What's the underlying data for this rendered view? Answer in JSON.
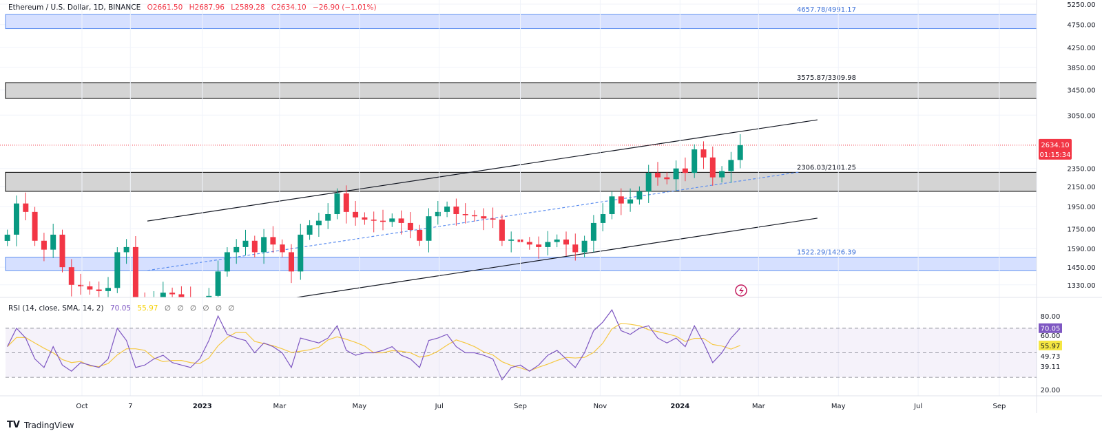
{
  "header": {
    "symbol": "Ethereum / U.S. Dollar, 1D, BINANCE",
    "open": "O2661.50",
    "high": "H2687.96",
    "low": "L2589.28",
    "close": "C2634.10",
    "change": "−26.90 (−1.01%)"
  },
  "rsi_header": {
    "label": "RSI (14, close, SMA, 14, 2)",
    "rsi": "70.05",
    "sma": "55.97",
    "empty": [
      "∅",
      "∅",
      "∅",
      "∅",
      "∅",
      "∅"
    ]
  },
  "footer": {
    "brand": "TradingView",
    "logo_mark": "17"
  },
  "colors": {
    "up": "#089981",
    "down": "#f23645",
    "rsi": "#7e57c2",
    "rsi_sma": "#f5c842",
    "blue_zone": "#d6e0ff",
    "gray_zone": "#d4d4d4",
    "accent_blue": "#5b8def"
  },
  "chart_data": [
    {
      "type": "candlestick",
      "scale": "log",
      "ylim": [
        1270,
        5300
      ],
      "price_ticks": [
        "5250.00",
        "4750.00",
        "4250.00",
        "3850.00",
        "3450.00",
        "3050.00",
        "2350.00",
        "2150.00",
        "1950.00",
        "1750.00",
        "1590.00",
        "1450.00",
        "1330.00"
      ],
      "time_ticks": [
        {
          "label": "Oct",
          "date": "2022-10-01"
        },
        {
          "label": "7",
          "date": "2022-11-07"
        },
        {
          "label": "2023",
          "date": "2023-01-01"
        },
        {
          "label": "Mar",
          "date": "2023-03-01"
        },
        {
          "label": "May",
          "date": "2023-05-01"
        },
        {
          "label": "Jul",
          "date": "2023-07-01"
        },
        {
          "label": "Sep",
          "date": "2023-09-01"
        },
        {
          "label": "Nov",
          "date": "2023-11-01"
        },
        {
          "label": "2024",
          "date": "2024-01-01"
        },
        {
          "label": "Mar",
          "date": "2024-03-01"
        },
        {
          "label": "May",
          "date": "2024-05-01"
        },
        {
          "label": "Jul",
          "date": "2024-07-01"
        },
        {
          "label": "Sep",
          "date": "2024-09-01"
        }
      ],
      "last_price": {
        "value": 2634.1,
        "label": "2634.10",
        "countdown": "01:15:34"
      },
      "dates": [
        "2022-08-05",
        "2022-08-12",
        "2022-08-19",
        "2022-08-26",
        "2022-09-02",
        "2022-09-09",
        "2022-09-16",
        "2022-09-23",
        "2022-09-30",
        "2022-10-07",
        "2022-10-14",
        "2022-10-21",
        "2022-10-28",
        "2022-11-04",
        "2022-11-11",
        "2022-11-18",
        "2022-11-25",
        "2022-12-02",
        "2022-12-09",
        "2022-12-16",
        "2022-12-23",
        "2022-12-30",
        "2023-01-06",
        "2023-01-13",
        "2023-01-20",
        "2023-01-27",
        "2023-02-03",
        "2023-02-10",
        "2023-02-17",
        "2023-02-24",
        "2023-03-03",
        "2023-03-10",
        "2023-03-17",
        "2023-03-24",
        "2023-03-31",
        "2023-04-07",
        "2023-04-14",
        "2023-04-21",
        "2023-04-28",
        "2023-05-05",
        "2023-05-12",
        "2023-05-19",
        "2023-05-26",
        "2023-06-02",
        "2023-06-09",
        "2023-06-16",
        "2023-06-23",
        "2023-06-30",
        "2023-07-07",
        "2023-07-14",
        "2023-07-21",
        "2023-07-28",
        "2023-08-04",
        "2023-08-11",
        "2023-08-18",
        "2023-08-25",
        "2023-09-01",
        "2023-09-08",
        "2023-09-15",
        "2023-09-22",
        "2023-09-29",
        "2023-10-06",
        "2023-10-13",
        "2023-10-20",
        "2023-10-27",
        "2023-11-03",
        "2023-11-10",
        "2023-11-17",
        "2023-11-24",
        "2023-12-01",
        "2023-12-08",
        "2023-12-15",
        "2023-12-22",
        "2023-12-29",
        "2024-01-05",
        "2024-01-12",
        "2024-01-19",
        "2024-01-26",
        "2024-02-02",
        "2024-02-09",
        "2024-02-16"
      ],
      "close": [
        1700,
        1980,
        1900,
        1650,
        1580,
        1700,
        1450,
        1330,
        1320,
        1300,
        1290,
        1310,
        1560,
        1600,
        1250,
        1220,
        1240,
        1280,
        1270,
        1250,
        1220,
        1200,
        1260,
        1420,
        1560,
        1600,
        1650,
        1560,
        1680,
        1620,
        1560,
        1420,
        1700,
        1780,
        1820,
        1880,
        2080,
        1900,
        1850,
        1830,
        1820,
        1810,
        1840,
        1800,
        1740,
        1650,
        1860,
        1900,
        1950,
        1880,
        1870,
        1860,
        1840,
        1830,
        1650,
        1660,
        1640,
        1620,
        1600,
        1640,
        1660,
        1620,
        1560,
        1650,
        1800,
        1880,
        2050,
        1980,
        2020,
        2100,
        2300,
        2250,
        2230,
        2350,
        2300,
        2580,
        2480,
        2250,
        2320,
        2450,
        2634.1
      ],
      "zones": [
        {
          "low": 4657.78,
          "high": 4991.17,
          "label": "4657.78/4991.17",
          "style": "blue"
        },
        {
          "low": 3309.98,
          "high": 3575.87,
          "label": "3575.87/3309.98",
          "style": "gray"
        },
        {
          "low": 2101.25,
          "high": 2306.03,
          "label": "2306.03/2101.25",
          "style": "gray"
        },
        {
          "low": 1426.39,
          "high": 1522.29,
          "label": "1522.29/1426.39",
          "style": "blue"
        }
      ],
      "trendlines": [
        {
          "from": [
            "2022-11-20",
            1817
          ],
          "to": [
            "2024-04-15",
            2981
          ],
          "style": "solid"
        },
        {
          "from": [
            "2023-03-11",
            1247
          ],
          "to": [
            "2024-04-15",
            1843
          ],
          "style": "solid"
        },
        {
          "from": [
            "2022-11-20",
            1427
          ],
          "to": [
            "2024-04-01",
            2309
          ],
          "style": "dashed"
        }
      ]
    },
    {
      "type": "line",
      "name": "RSI (14, close, SMA, 14, 2)",
      "ylim": [
        15,
        90
      ],
      "ticks": [
        "80.00",
        "60.00",
        "49.73",
        "39.11",
        "20.00"
      ],
      "bands": [
        70,
        50,
        30
      ],
      "last_rsi": "70.05",
      "last_sma": "55.97",
      "rsi": [
        55,
        70,
        62,
        45,
        38,
        55,
        40,
        35,
        42,
        40,
        38,
        45,
        70,
        60,
        38,
        40,
        45,
        48,
        42,
        40,
        38,
        45,
        60,
        80,
        65,
        62,
        60,
        50,
        58,
        55,
        50,
        38,
        62,
        60,
        58,
        62,
        72,
        52,
        48,
        50,
        50,
        52,
        55,
        48,
        45,
        38,
        60,
        62,
        65,
        55,
        50,
        50,
        48,
        45,
        28,
        38,
        40,
        35,
        40,
        48,
        52,
        45,
        38,
        50,
        68,
        75,
        85,
        68,
        65,
        70,
        72,
        62,
        58,
        62,
        55,
        72,
        58,
        42,
        50,
        62,
        70.05
      ]
    }
  ]
}
